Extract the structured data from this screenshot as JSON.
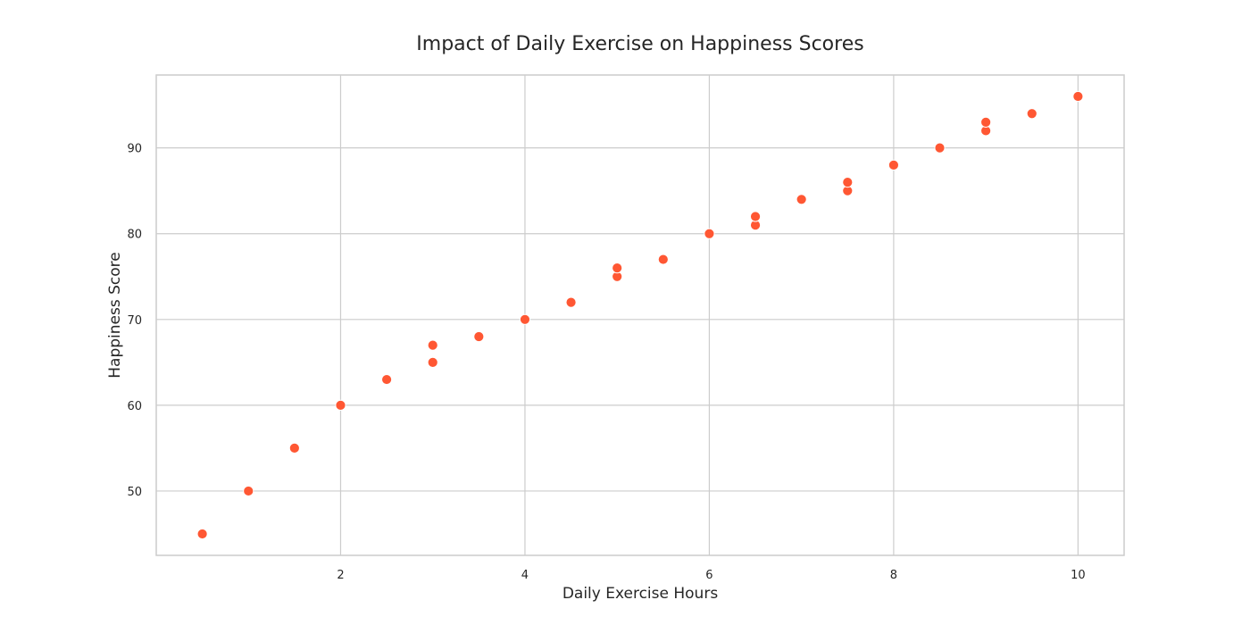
{
  "chart_data": {
    "type": "scatter",
    "title": "Impact of Daily Exercise on Happiness Scores",
    "xlabel": "Daily Exercise Hours",
    "ylabel": "Happiness Score",
    "xlim": [
      0.0,
      10.5
    ],
    "ylim": [
      42.5,
      98.5
    ],
    "xticks": [
      2,
      4,
      6,
      8,
      10
    ],
    "yticks": [
      50,
      60,
      70,
      80,
      90
    ],
    "grid": true,
    "point_color": "#FF5733",
    "series": [
      {
        "name": "Happiness Score",
        "points": [
          {
            "x": 0.5,
            "y": 45
          },
          {
            "x": 1.0,
            "y": 50
          },
          {
            "x": 1.5,
            "y": 55
          },
          {
            "x": 2.0,
            "y": 60
          },
          {
            "x": 2.5,
            "y": 63
          },
          {
            "x": 3.0,
            "y": 65
          },
          {
            "x": 3.0,
            "y": 67
          },
          {
            "x": 3.5,
            "y": 68
          },
          {
            "x": 4.0,
            "y": 70
          },
          {
            "x": 4.5,
            "y": 72
          },
          {
            "x": 5.0,
            "y": 75
          },
          {
            "x": 5.0,
            "y": 76
          },
          {
            "x": 5.5,
            "y": 77
          },
          {
            "x": 6.0,
            "y": 80
          },
          {
            "x": 6.5,
            "y": 81
          },
          {
            "x": 6.5,
            "y": 82
          },
          {
            "x": 7.0,
            "y": 84
          },
          {
            "x": 7.5,
            "y": 85
          },
          {
            "x": 7.5,
            "y": 86
          },
          {
            "x": 8.0,
            "y": 88
          },
          {
            "x": 8.5,
            "y": 90
          },
          {
            "x": 9.0,
            "y": 92
          },
          {
            "x": 9.0,
            "y": 93
          },
          {
            "x": 9.5,
            "y": 94
          },
          {
            "x": 10.0,
            "y": 96
          }
        ]
      }
    ]
  }
}
